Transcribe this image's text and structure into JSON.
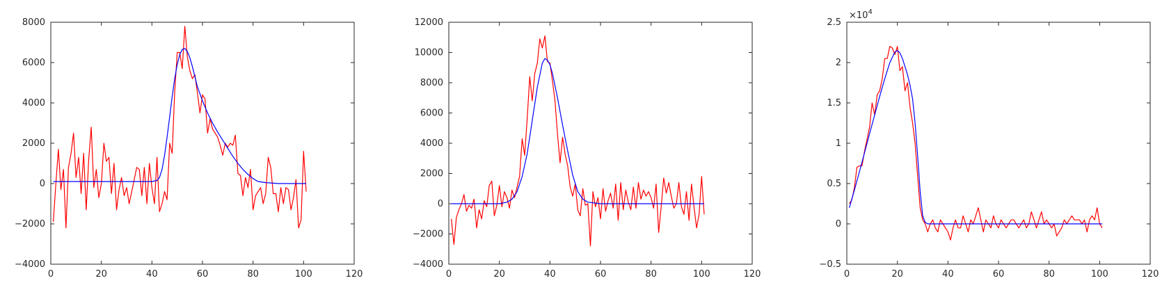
{
  "chart_data": [
    {
      "type": "line",
      "xlim": [
        0,
        120
      ],
      "ylim": [
        -4000,
        8000
      ],
      "xticks": [
        0,
        20,
        40,
        60,
        80,
        100,
        120
      ],
      "yticks": [
        -4000,
        -2000,
        0,
        2000,
        4000,
        6000,
        8000
      ],
      "tick_labels_x": [
        "0",
        "20",
        "40",
        "60",
        "80",
        "100",
        "120"
      ],
      "tick_labels_y": [
        "−4000",
        "−2000",
        "0",
        "2000",
        "4000",
        "6000",
        "8000"
      ],
      "exponent_label": "",
      "grid": false,
      "series": [
        {
          "color": "#ff0000",
          "style": "noisy-data",
          "x": [
            1,
            2,
            3,
            4,
            5,
            6,
            7,
            8,
            9,
            10,
            11,
            12,
            13,
            14,
            15,
            16,
            17,
            18,
            19,
            20,
            21,
            22,
            23,
            24,
            25,
            26,
            27,
            28,
            29,
            30,
            31,
            32,
            33,
            34,
            35,
            36,
            37,
            38,
            39,
            40,
            41,
            42,
            43,
            44,
            45,
            46,
            47,
            48,
            49,
            50,
            51,
            52,
            53,
            54,
            55,
            56,
            57,
            58,
            59,
            60,
            61,
            62,
            63,
            64,
            65,
            66,
            67,
            68,
            69,
            70,
            71,
            72,
            73,
            74,
            75,
            76,
            77,
            78,
            79,
            80,
            81,
            82,
            83,
            84,
            85,
            86,
            87,
            88,
            89,
            90,
            91,
            92,
            93,
            94,
            95,
            96,
            97,
            98,
            99,
            100,
            101
          ],
          "y": [
            -1900,
            0,
            1700,
            -300,
            700,
            -2200,
            800,
            1500,
            2500,
            300,
            1300,
            -500,
            1500,
            -1300,
            1200,
            2800,
            -200,
            700,
            -700,
            0,
            2000,
            1100,
            1300,
            -500,
            1000,
            -1300,
            -300,
            300,
            -600,
            -200,
            -1000,
            -400,
            200,
            800,
            700,
            -600,
            800,
            -1000,
            1000,
            -200,
            -1000,
            1300,
            -1400,
            -1000,
            -400,
            -800,
            2000,
            1500,
            4500,
            6500,
            6500,
            5700,
            7800,
            6300,
            5600,
            5200,
            5400,
            4500,
            3500,
            4400,
            4200,
            2500,
            3200,
            2700,
            2500,
            2300,
            1900,
            1400,
            2000,
            1800,
            2000,
            1900,
            2400,
            500,
            400,
            -600,
            300,
            -200,
            700,
            -1300,
            -600,
            -400,
            -200,
            -1000,
            -500,
            1300,
            800,
            -500,
            -500,
            -1400,
            -200,
            -1000,
            -200,
            -300,
            -1300,
            -700,
            200,
            -2200,
            -1800,
            1600,
            -400
          ]
        },
        {
          "color": "#0000ff",
          "style": "fit",
          "x": [
            1,
            5,
            10,
            15,
            20,
            25,
            30,
            35,
            40,
            42,
            43,
            44,
            45,
            46,
            47,
            48,
            49,
            50,
            51,
            52,
            53,
            54,
            55,
            56,
            57,
            58,
            60,
            62,
            64,
            66,
            68,
            70,
            72,
            74,
            76,
            78,
            80,
            82,
            85,
            90,
            95,
            101
          ],
          "y": [
            100,
            100,
            100,
            100,
            100,
            100,
            100,
            100,
            100,
            150,
            300,
            700,
            1400,
            2300,
            3300,
            4300,
            5200,
            5900,
            6400,
            6650,
            6700,
            6550,
            6250,
            5800,
            5300,
            4800,
            4100,
            3500,
            3000,
            2550,
            2150,
            1750,
            1350,
            1000,
            700,
            450,
            250,
            100,
            50,
            0,
            0,
            0
          ]
        }
      ]
    },
    {
      "type": "line",
      "xlim": [
        0,
        120
      ],
      "ylim": [
        -4000,
        12000
      ],
      "xticks": [
        0,
        20,
        40,
        60,
        80,
        100,
        120
      ],
      "yticks": [
        -4000,
        -2000,
        0,
        2000,
        4000,
        6000,
        8000,
        10000,
        12000
      ],
      "tick_labels_x": [
        "0",
        "20",
        "40",
        "60",
        "80",
        "100",
        "120"
      ],
      "tick_labels_y": [
        "−4000",
        "−2000",
        "0",
        "2000",
        "4000",
        "6000",
        "8000",
        "10000",
        "12000"
      ],
      "exponent_label": "",
      "grid": false,
      "series": [
        {
          "color": "#ff0000",
          "style": "noisy-data",
          "x": [
            1,
            2,
            3,
            4,
            5,
            6,
            7,
            8,
            9,
            10,
            11,
            12,
            13,
            14,
            15,
            16,
            17,
            18,
            19,
            20,
            21,
            22,
            23,
            24,
            25,
            26,
            27,
            28,
            29,
            30,
            31,
            32,
            33,
            34,
            35,
            36,
            37,
            38,
            39,
            40,
            41,
            42,
            43,
            44,
            45,
            46,
            47,
            48,
            49,
            50,
            51,
            52,
            53,
            54,
            55,
            56,
            57,
            58,
            59,
            60,
            61,
            62,
            63,
            64,
            65,
            66,
            67,
            68,
            69,
            70,
            71,
            72,
            73,
            74,
            75,
            76,
            77,
            78,
            79,
            80,
            81,
            82,
            83,
            84,
            85,
            86,
            87,
            88,
            89,
            90,
            91,
            92,
            93,
            94,
            95,
            96,
            97,
            98,
            99,
            100,
            101
          ],
          "y": [
            -1000,
            -2700,
            -900,
            -400,
            0,
            600,
            -500,
            -100,
            -300,
            300,
            -1600,
            -400,
            -1000,
            200,
            -200,
            1200,
            1500,
            -800,
            -100,
            1200,
            -200,
            800,
            400,
            -300,
            900,
            400,
            1100,
            1800,
            4300,
            3200,
            5600,
            8400,
            6800,
            8600,
            9300,
            10900,
            10300,
            11100,
            9400,
            9300,
            8100,
            6800,
            4600,
            2700,
            4400,
            3300,
            2500,
            1100,
            500,
            1300,
            -400,
            -800,
            1000,
            -100,
            0,
            -2800,
            800,
            -200,
            400,
            -1000,
            1000,
            -500,
            200,
            700,
            -300,
            1300,
            -1100,
            1400,
            -400,
            900,
            100,
            -400,
            1100,
            -300,
            1400,
            300,
            900,
            500,
            800,
            400,
            -300,
            1300,
            -1900,
            -200,
            1700,
            700,
            1400,
            500,
            -300,
            0,
            1400,
            -200,
            -700,
            800,
            -1100,
            1300,
            -200,
            -1600,
            -700,
            1800,
            -700
          ]
        },
        {
          "color": "#0000ff",
          "style": "fit",
          "x": [
            1,
            10,
            20,
            23,
            25,
            27,
            29,
            31,
            33,
            35,
            37,
            38,
            39,
            40,
            41,
            43,
            45,
            47,
            49,
            51,
            53,
            55,
            60,
            70,
            80,
            90,
            101
          ],
          "y": [
            0,
            0,
            0,
            100,
            300,
            800,
            1800,
            3300,
            5500,
            7700,
            9300,
            9600,
            9500,
            9200,
            8600,
            7000,
            5200,
            3500,
            1900,
            800,
            300,
            100,
            0,
            0,
            0,
            0,
            0
          ]
        }
      ]
    },
    {
      "type": "line",
      "xlim": [
        0,
        120
      ],
      "ylim": [
        -0.5,
        2.5
      ],
      "xticks": [
        0,
        20,
        40,
        60,
        80,
        100,
        120
      ],
      "yticks": [
        -0.5,
        0,
        0.5,
        1,
        1.5,
        2,
        2.5
      ],
      "tick_labels_x": [
        "0",
        "20",
        "40",
        "60",
        "80",
        "100",
        "120"
      ],
      "tick_labels_y": [
        "−0.5",
        "0",
        "0.5",
        "1",
        "1.5",
        "2",
        "2.5"
      ],
      "exponent_label": "×10",
      "exponent_power": "4",
      "grid": false,
      "series": [
        {
          "color": "#ff0000",
          "style": "noisy-data",
          "x": [
            1,
            2,
            3,
            4,
            5,
            6,
            7,
            8,
            9,
            10,
            11,
            12,
            13,
            14,
            15,
            16,
            17,
            18,
            19,
            20,
            21,
            22,
            23,
            24,
            25,
            26,
            27,
            28,
            29,
            30,
            31,
            32,
            33,
            34,
            35,
            36,
            37,
            38,
            39,
            40,
            41,
            42,
            43,
            44,
            45,
            46,
            47,
            48,
            49,
            50,
            51,
            52,
            53,
            54,
            55,
            56,
            57,
            58,
            59,
            60,
            61,
            62,
            63,
            64,
            65,
            66,
            67,
            68,
            69,
            70,
            71,
            72,
            73,
            74,
            75,
            76,
            77,
            78,
            79,
            80,
            81,
            82,
            83,
            84,
            85,
            86,
            87,
            88,
            89,
            90,
            91,
            92,
            93,
            94,
            95,
            96,
            97,
            98,
            99,
            100,
            101
          ],
          "y": [
            0.25,
            0.3,
            0.45,
            0.7,
            0.72,
            0.72,
            0.9,
            1.05,
            1.2,
            1.5,
            1.35,
            1.6,
            1.65,
            1.8,
            2.05,
            2.05,
            2.2,
            2.18,
            2.1,
            2.2,
            1.9,
            1.95,
            1.65,
            1.75,
            1.45,
            1.25,
            1.0,
            0.6,
            0.2,
            0.05,
            0.0,
            -0.1,
            0.0,
            0.05,
            -0.05,
            -0.1,
            0.05,
            0.0,
            -0.05,
            -0.1,
            -0.2,
            -0.05,
            0.05,
            -0.05,
            -0.05,
            0.1,
            0.0,
            -0.1,
            0.05,
            0.0,
            0.1,
            0.2,
            0.05,
            -0.1,
            0.05,
            0.0,
            -0.05,
            0.1,
            0.0,
            -0.05,
            0.05,
            0.0,
            -0.05,
            0.0,
            0.05,
            0.05,
            0.0,
            -0.05,
            0.0,
            0.05,
            -0.05,
            0.0,
            0.15,
            0.05,
            -0.05,
            0.05,
            0.15,
            0.0,
            0.05,
            0.0,
            -0.05,
            0.0,
            -0.15,
            -0.1,
            -0.05,
            0.05,
            0.0,
            0.05,
            0.1,
            0.05,
            0.05,
            0.05,
            0.0,
            0.05,
            -0.1,
            0.05,
            0.1,
            0.05,
            0.2,
            0.0,
            -0.05
          ]
        },
        {
          "color": "#0000ff",
          "style": "fit",
          "x": [
            1,
            3,
            5,
            7,
            9,
            11,
            13,
            15,
            17,
            19,
            20,
            21,
            22,
            23,
            24,
            25,
            26,
            27,
            28,
            29,
            30,
            31,
            32,
            35,
            40,
            50,
            60,
            70,
            80,
            90,
            101
          ],
          "y": [
            0.2,
            0.42,
            0.65,
            0.88,
            1.12,
            1.35,
            1.58,
            1.8,
            2.0,
            2.13,
            2.15,
            2.12,
            2.05,
            1.95,
            1.85,
            1.72,
            1.55,
            1.25,
            0.85,
            0.4,
            0.1,
            0.02,
            0.0,
            0.0,
            0.0,
            0.0,
            0.0,
            0.0,
            0.0,
            0.0,
            0.0
          ]
        }
      ]
    }
  ]
}
